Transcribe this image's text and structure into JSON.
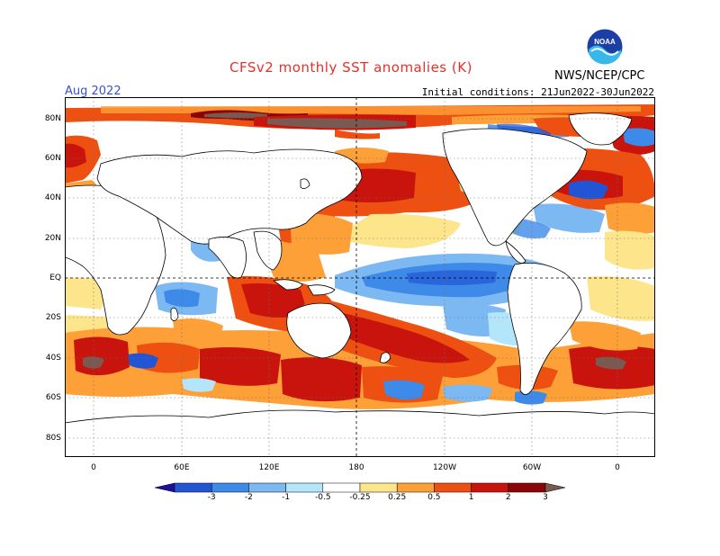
{
  "header": {
    "title": "CFSv2 monthly SST anomalies (K)",
    "period": "Aug 2022",
    "initial_conditions": "Initial conditions: 21Jun2022-30Jun2022",
    "agency": "NWS/NCEP/CPC",
    "logo_text": "NOAA"
  },
  "map": {
    "lat_labels": [
      "80N",
      "60N",
      "40N",
      "20N",
      "EQ",
      "20S",
      "40S",
      "60S",
      "80S"
    ],
    "lon_labels": [
      "0",
      "60E",
      "120E",
      "180",
      "120W",
      "60W",
      "0"
    ]
  },
  "colorbar": {
    "ticks": [
      "-3",
      "-2",
      "-1",
      "-0.5",
      "-0.25",
      "0.25",
      "0.5",
      "1",
      "2",
      "3"
    ],
    "colors": [
      "#1e1098",
      "#2155d6",
      "#3d8ae8",
      "#7cb8f2",
      "#b4e6fb",
      "#ffffff",
      "#fde58c",
      "#fca037",
      "#ed5011",
      "#c8140c",
      "#8a0606",
      "#7a5a50"
    ]
  }
}
